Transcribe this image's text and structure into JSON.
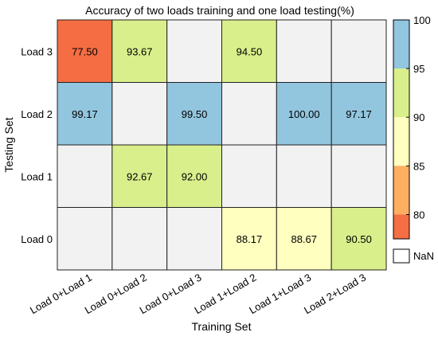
{
  "chart_data": {
    "type": "heatmap",
    "title": "Accuracy of two loads training and one load testing(%)",
    "xlabel": "Training Set",
    "ylabel": "Testing Set",
    "x_categories": [
      "Load 0+Load 1",
      "Load 0+Load 2",
      "Load 0+Load 3",
      "Load 1+Load 2",
      "Load 1+Load 3",
      "Load 2+Load 3"
    ],
    "y_categories": [
      "Load 3",
      "Load 2",
      "Load 1",
      "Load 0"
    ],
    "values": [
      [
        77.5,
        93.67,
        null,
        94.5,
        null,
        null
      ],
      [
        99.17,
        null,
        99.5,
        null,
        100.0,
        97.17
      ],
      [
        null,
        92.67,
        92.0,
        null,
        null,
        null
      ],
      [
        null,
        null,
        null,
        88.17,
        88.67,
        90.5
      ]
    ],
    "value_labels": [
      [
        "77.50",
        "93.67",
        "",
        "94.50",
        "",
        ""
      ],
      [
        "99.17",
        "",
        "99.50",
        "",
        "100.00",
        "97.17"
      ],
      [
        "",
        "92.67",
        "92.00",
        "",
        "",
        ""
      ],
      [
        "",
        "",
        "",
        "88.17",
        "88.67",
        "90.50"
      ]
    ],
    "colorbar": {
      "range": [
        77.5,
        100
      ],
      "ticks": [
        "100",
        "95",
        "90",
        "85",
        "80"
      ],
      "bands": [
        {
          "min": 95,
          "max": 100,
          "color": "#92c5de"
        },
        {
          "min": 90,
          "max": 95,
          "color": "#d9ef8b"
        },
        {
          "min": 85,
          "max": 90,
          "color": "#ffffbf"
        },
        {
          "min": 80,
          "max": 85,
          "color": "#fdae61"
        },
        {
          "min": 77.5,
          "max": 80,
          "color": "#f46d43"
        }
      ],
      "nan_color": "#f2f2f2",
      "nan_label": "NaN"
    },
    "grid": true
  }
}
